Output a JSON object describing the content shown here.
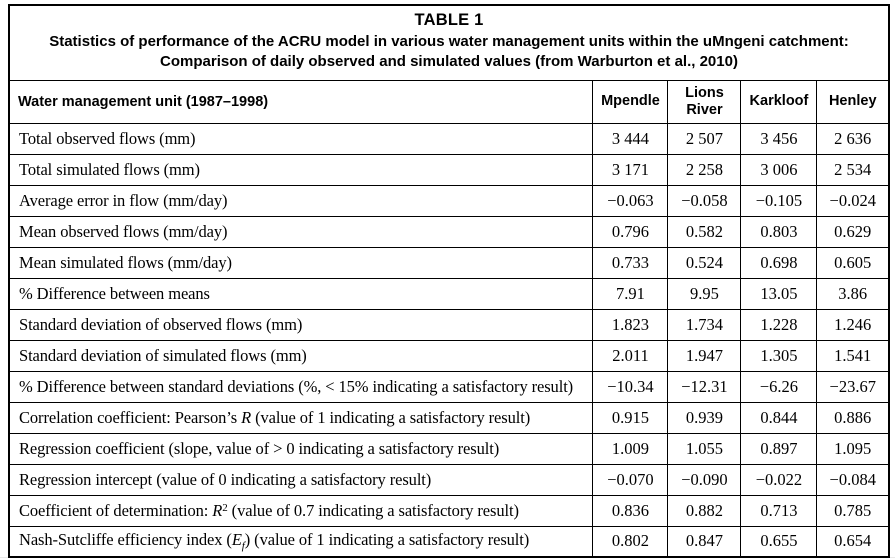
{
  "table": {
    "title": "TABLE 1",
    "subtitle": "Statistics of performance of the ACRU model in various water management units within the uMngeni catchment: Comparison of daily observed and simulated values (from Warburton et al., 2010)",
    "header": {
      "label": "Water management unit (1987–1998)",
      "columns": [
        "Mpendle",
        "Lions River",
        "Karkloof",
        "Henley"
      ]
    },
    "rows": [
      {
        "label_parts": [
          {
            "t": "Total observed flows (mm)"
          }
        ],
        "values": [
          "3 444",
          "2 507",
          "3 456",
          "2 636"
        ]
      },
      {
        "label_parts": [
          {
            "t": "Total simulated flows (mm)"
          }
        ],
        "values": [
          "3 171",
          "2 258",
          "3 006",
          "2 534"
        ]
      },
      {
        "label_parts": [
          {
            "t": "Average error in flow (mm/day)"
          }
        ],
        "values": [
          "−0.063",
          "−0.058",
          "−0.105",
          "−0.024"
        ]
      },
      {
        "label_parts": [
          {
            "t": "Mean observed flows (mm/day)"
          }
        ],
        "values": [
          "0.796",
          "0.582",
          "0.803",
          "0.629"
        ]
      },
      {
        "label_parts": [
          {
            "t": "Mean simulated flows (mm/day)"
          }
        ],
        "values": [
          "0.733",
          "0.524",
          "0.698",
          "0.605"
        ]
      },
      {
        "label_parts": [
          {
            "t": "% Difference between means"
          }
        ],
        "values": [
          "7.91",
          "9.95",
          "13.05",
          "3.86"
        ]
      },
      {
        "label_parts": [
          {
            "t": "Standard deviation of observed flows (mm)"
          }
        ],
        "values": [
          "1.823",
          "1.734",
          "1.228",
          "1.246"
        ]
      },
      {
        "label_parts": [
          {
            "t": "Standard deviation of simulated flows (mm)"
          }
        ],
        "values": [
          "2.011",
          "1.947",
          "1.305",
          "1.541"
        ]
      },
      {
        "label_parts": [
          {
            "t": "% Difference between standard deviations (%, < 15% indicating a satisfactory result)"
          }
        ],
        "values": [
          "−10.34",
          "−12.31",
          "−6.26",
          "−23.67"
        ]
      },
      {
        "label_parts": [
          {
            "t": "Correlation coefficient: Pearson’s "
          },
          {
            "t": "R",
            "s": "i"
          },
          {
            "t": " (value of 1 indicating a satisfactory result)"
          }
        ],
        "values": [
          "0.915",
          "0.939",
          "0.844",
          "0.886"
        ]
      },
      {
        "label_parts": [
          {
            "t": "Regression coefficient (slope, value of > 0 indicating a satisfactory result)"
          }
        ],
        "values": [
          "1.009",
          "1.055",
          "0.897",
          "1.095"
        ]
      },
      {
        "label_parts": [
          {
            "t": "Regression intercept (value of 0 indicating a satisfactory result)"
          }
        ],
        "values": [
          "−0.070",
          "−0.090",
          "−0.022",
          "−0.084"
        ]
      },
      {
        "label_parts": [
          {
            "t": "Coefficient of determination: "
          },
          {
            "t": "R",
            "s": "i"
          },
          {
            "t": "2",
            "s": "sup"
          },
          {
            "t": " (value of 0.7 indicating a satisfactory result)"
          }
        ],
        "values": [
          "0.836",
          "0.882",
          "0.713",
          "0.785"
        ]
      },
      {
        "label_parts": [
          {
            "t": "Nash-Sutcliffe efficiency index ("
          },
          {
            "t": "E",
            "s": "i"
          },
          {
            "t": "f",
            "s": "sub"
          },
          {
            "t": ") (value of 1 indicating a satisfactory result)"
          }
        ],
        "values": [
          "0.802",
          "0.847",
          "0.655",
          "0.654"
        ]
      }
    ]
  }
}
